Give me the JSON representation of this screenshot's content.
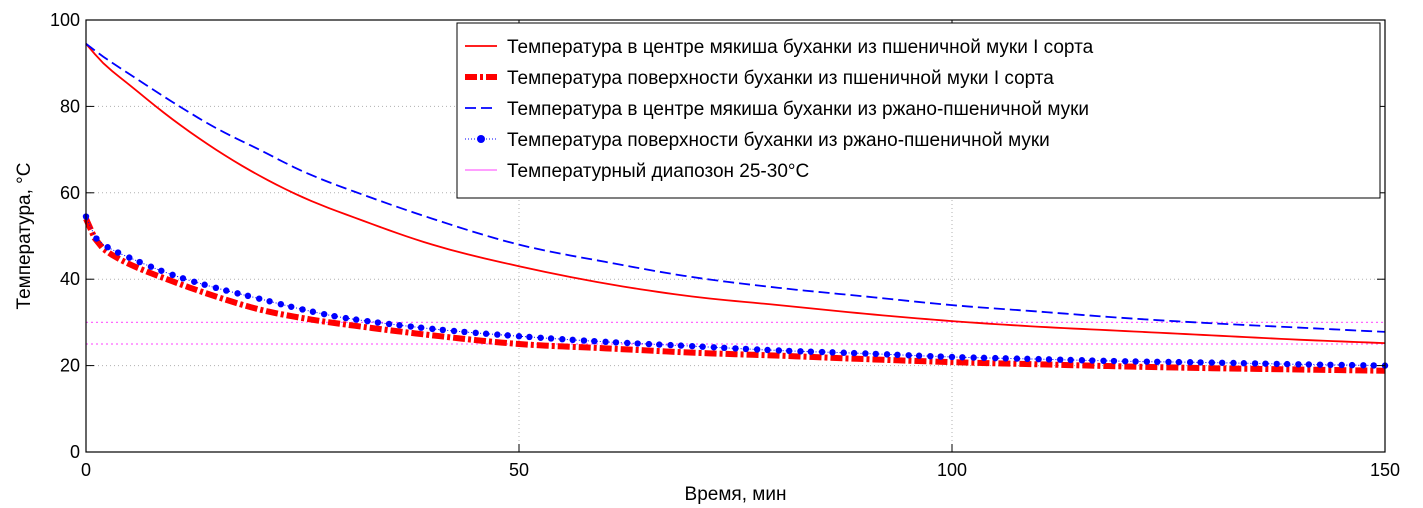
{
  "chart_data": {
    "type": "line",
    "xlabel": "Время, мин",
    "ylabel": "Температура, °C",
    "xlim": [
      0,
      150
    ],
    "ylim": [
      0,
      100
    ],
    "xticks": [
      0,
      50,
      100,
      150
    ],
    "yticks": [
      0,
      20,
      40,
      60,
      80,
      100
    ],
    "grid": true,
    "legend_position": "top-right",
    "series": [
      {
        "name": "Температура в центре мякиша буханки из пшеничной муки I сорта",
        "color": "#ff0000",
        "style": "solid",
        "x": [
          0,
          2,
          5,
          10,
          15,
          20,
          25,
          30,
          40,
          50,
          60,
          70,
          80,
          90,
          100,
          110,
          120,
          130,
          140,
          150
        ],
        "y": [
          94.5,
          90,
          85,
          77,
          70,
          64,
          59,
          55,
          48,
          43,
          39,
          36,
          34,
          32,
          30.3,
          29,
          28,
          27,
          26,
          25.2
        ]
      },
      {
        "name": "Температура поверхности буханки из пшеничной муки I сорта",
        "color": "#ff0000",
        "style": "dashdot-thick",
        "x": [
          0,
          1,
          2,
          5,
          10,
          15,
          20,
          25,
          30,
          40,
          50,
          60,
          70,
          80,
          90,
          100,
          110,
          120,
          130,
          140,
          150
        ],
        "y": [
          54,
          49.5,
          47,
          43.5,
          39.5,
          36,
          33,
          31,
          29.5,
          27,
          25,
          24,
          23,
          22.3,
          21.5,
          20.8,
          20.3,
          19.8,
          19.4,
          19.1,
          18.8
        ]
      },
      {
        "name": "Температура в центре мякиша буханки из ржано-пшеничной муки",
        "color": "#0000ff",
        "style": "dashed",
        "x": [
          0,
          2,
          5,
          10,
          15,
          20,
          25,
          30,
          40,
          50,
          60,
          70,
          80,
          90,
          100,
          110,
          120,
          130,
          140,
          150
        ],
        "y": [
          94.5,
          91.5,
          87.5,
          81,
          75,
          70,
          65,
          61,
          54,
          48,
          44,
          40.5,
          38,
          36,
          34,
          32.5,
          31,
          29.8,
          28.8,
          27.8
        ]
      },
      {
        "name": "Температура поверхности буханки из ржано-пшеничной муки",
        "color": "#0000ff",
        "style": "dotted-markers",
        "x": [
          0,
          1,
          2,
          5,
          10,
          15,
          20,
          25,
          30,
          40,
          50,
          60,
          70,
          80,
          90,
          100,
          110,
          120,
          130,
          140,
          150
        ],
        "y": [
          54.5,
          50,
          48,
          45,
          41,
          38,
          35.5,
          33,
          31,
          28.5,
          26.8,
          25.5,
          24.5,
          23.5,
          22.8,
          22,
          21.5,
          21,
          20.7,
          20.3,
          20
        ]
      },
      {
        "name": "Температурный диапозон 25-30°C",
        "color": "#ff66ff",
        "style": "dotted",
        "bands": [
          25,
          30
        ]
      }
    ]
  }
}
